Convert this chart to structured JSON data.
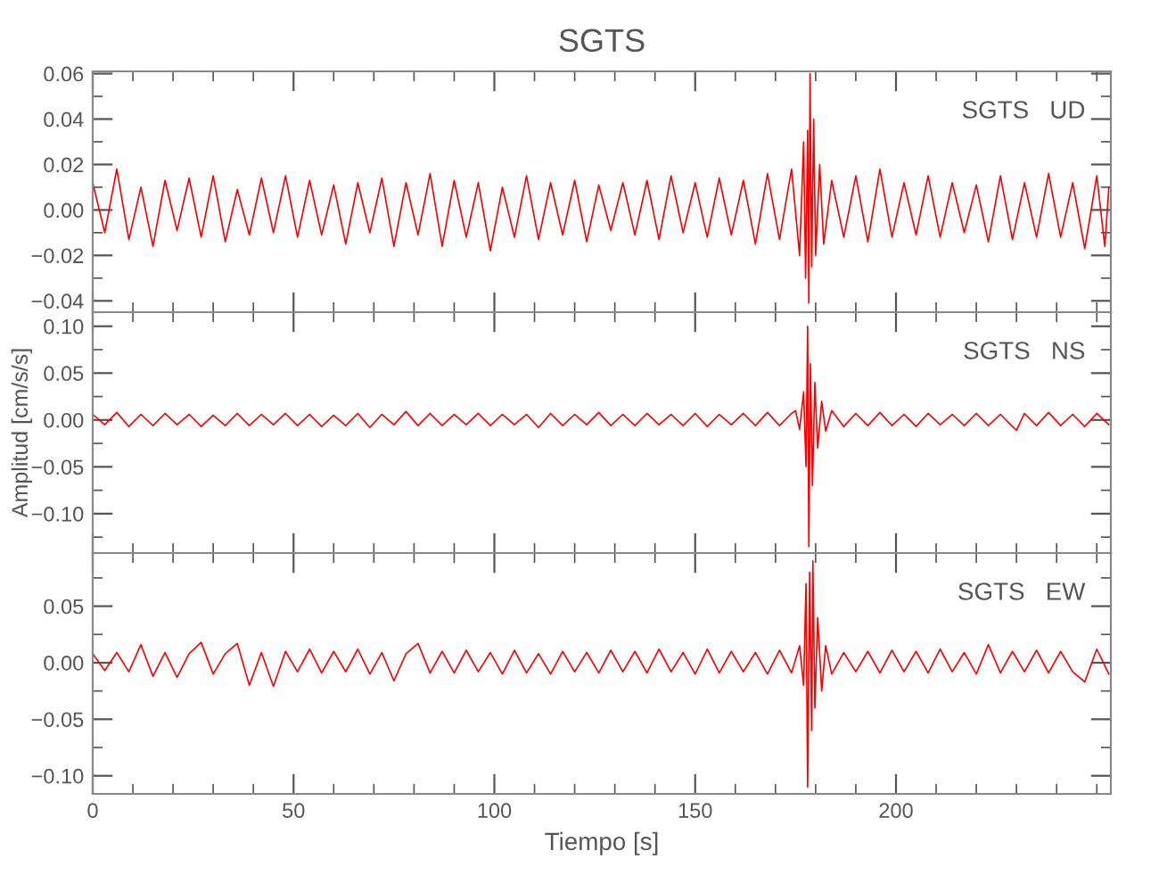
{
  "chart_data": [
    {
      "type": "line",
      "title": "SGTS",
      "annotations": [
        "SGTS   UD"
      ],
      "tick_labels": "y",
      "grid": false,
      "xlim": [
        0,
        253.5
      ],
      "xticks": [
        0,
        50,
        100,
        150,
        200
      ],
      "ylim": [
        -0.045,
        0.061
      ],
      "yticks": [
        {
          "value": -0.04,
          "label": "−0.04"
        },
        {
          "value": -0.02,
          "label": "−0.02"
        },
        {
          "value": 0,
          "label": "0.00"
        },
        {
          "value": 0.02,
          "label": "0.02"
        },
        {
          "value": 0.04,
          "label": "0.04"
        },
        {
          "value": 0.06,
          "label": "0.06"
        }
      ],
      "series": [
        {
          "color": "#ff0000",
          "x": [
            0,
            3,
            6,
            9,
            12,
            15,
            18,
            21,
            24,
            27,
            30,
            33,
            36,
            39,
            42,
            45,
            48,
            51,
            54,
            57,
            60,
            63,
            66,
            69,
            72,
            75,
            78,
            81,
            84,
            87,
            90,
            93,
            96,
            99,
            102,
            105,
            108,
            111,
            114,
            117,
            120,
            123,
            126,
            129,
            132,
            135,
            138,
            141,
            144,
            147,
            150,
            153,
            156,
            159,
            162,
            165,
            168,
            171,
            174,
            176,
            177,
            177.5,
            178,
            178.3,
            178.6,
            179,
            179.5,
            180,
            181,
            182,
            184,
            187,
            190,
            193,
            196,
            199,
            202,
            205,
            208,
            211,
            214,
            217,
            220,
            223,
            226,
            229,
            232,
            235,
            238,
            241,
            244,
            247,
            250,
            252,
            253
          ],
          "values": [
            0.012,
            -0.01,
            0.018,
            -0.013,
            0.01,
            -0.016,
            0.013,
            -0.009,
            0.014,
            -0.012,
            0.015,
            -0.014,
            0.009,
            -0.011,
            0.014,
            -0.01,
            0.015,
            -0.012,
            0.013,
            -0.011,
            0.011,
            -0.015,
            0.012,
            -0.01,
            0.014,
            -0.016,
            0.012,
            -0.011,
            0.016,
            -0.016,
            0.013,
            -0.012,
            0.012,
            -0.018,
            0.01,
            -0.012,
            0.015,
            -0.013,
            0.012,
            -0.011,
            0.013,
            -0.014,
            0.011,
            -0.009,
            0.012,
            -0.011,
            0.013,
            -0.013,
            0.015,
            -0.01,
            0.012,
            -0.012,
            0.014,
            -0.011,
            0.013,
            -0.015,
            0.016,
            -0.013,
            0.018,
            -0.02,
            0.03,
            -0.03,
            0.035,
            -0.041,
            0.06,
            -0.025,
            0.04,
            -0.02,
            0.02,
            -0.015,
            0.013,
            -0.012,
            0.015,
            -0.014,
            0.018,
            -0.012,
            0.012,
            -0.011,
            0.015,
            -0.012,
            0.012,
            -0.01,
            0.011,
            -0.014,
            0.015,
            -0.013,
            0.012,
            -0.012,
            0.016,
            -0.012,
            0.012,
            -0.017,
            0.015,
            -0.016,
            0.01
          ]
        }
      ]
    },
    {
      "type": "line",
      "annotations": [
        "SGTS   NS"
      ],
      "ylabel": "Amplitud [cm/s/s]",
      "tick_labels": "y",
      "grid": false,
      "xlim": [
        0,
        253.5
      ],
      "xticks": [
        0,
        50,
        100,
        150,
        200
      ],
      "ylim": [
        -0.142,
        0.115
      ],
      "yticks": [
        {
          "value": -0.1,
          "label": "−0.10"
        },
        {
          "value": -0.05,
          "label": "−0.05"
        },
        {
          "value": 0,
          "label": "0.00"
        },
        {
          "value": 0.05,
          "label": "0.05"
        },
        {
          "value": 0.1,
          "label": "0.10"
        }
      ],
      "series": [
        {
          "color": "#ff0000",
          "x": [
            0,
            3,
            6,
            9,
            12,
            15,
            18,
            21,
            24,
            27,
            30,
            33,
            36,
            39,
            42,
            45,
            48,
            51,
            54,
            57,
            60,
            63,
            66,
            69,
            72,
            75,
            78,
            81,
            84,
            87,
            90,
            93,
            96,
            99,
            102,
            105,
            108,
            111,
            114,
            117,
            120,
            123,
            126,
            129,
            132,
            135,
            138,
            141,
            144,
            147,
            150,
            153,
            156,
            159,
            162,
            165,
            168,
            171,
            174,
            175,
            176,
            177,
            177.6,
            178,
            178.3,
            178.7,
            179.2,
            179.8,
            180.5,
            181.5,
            182.5,
            184,
            187,
            190,
            193,
            196,
            199,
            202,
            205,
            208,
            211,
            214,
            217,
            220,
            223,
            226,
            229,
            230,
            232,
            235,
            238,
            241,
            244,
            247,
            250,
            253
          ],
          "values": [
            0.006,
            -0.005,
            0.008,
            -0.007,
            0.006,
            -0.006,
            0.007,
            -0.005,
            0.006,
            -0.007,
            0.005,
            -0.006,
            0.007,
            -0.006,
            0.006,
            -0.005,
            0.007,
            -0.006,
            0.006,
            -0.007,
            0.005,
            -0.006,
            0.007,
            -0.008,
            0.006,
            -0.005,
            0.009,
            -0.006,
            0.007,
            -0.006,
            0.006,
            -0.005,
            0.007,
            -0.006,
            0.006,
            -0.005,
            0.006,
            -0.008,
            0.007,
            -0.006,
            0.006,
            -0.005,
            0.008,
            -0.006,
            0.006,
            -0.006,
            0.007,
            -0.005,
            0.006,
            -0.006,
            0.007,
            -0.007,
            0.006,
            -0.005,
            0.007,
            -0.006,
            0.008,
            -0.006,
            0.007,
            0.01,
            -0.01,
            0.03,
            -0.05,
            0.1,
            -0.135,
            0.06,
            -0.07,
            0.04,
            -0.03,
            0.02,
            -0.012,
            0.01,
            -0.007,
            0.007,
            -0.006,
            0.008,
            -0.006,
            0.006,
            -0.007,
            0.007,
            -0.005,
            0.006,
            -0.006,
            0.007,
            -0.006,
            0.006,
            -0.007,
            -0.011,
            0.007,
            -0.006,
            0.008,
            -0.006,
            0.006,
            -0.007,
            0.007,
            -0.005
          ]
        }
      ]
    },
    {
      "type": "line",
      "annotations": [
        "SGTS   EW"
      ],
      "xlabel": "Tiempo [s]",
      "grid": false,
      "xlim": [
        0,
        253.5
      ],
      "xticks": [
        0,
        50,
        100,
        150,
        200
      ],
      "ylim": [
        -0.116,
        0.097
      ],
      "yticks": [
        {
          "value": -0.1,
          "label": "−0.10"
        },
        {
          "value": -0.05,
          "label": "−0.05"
        },
        {
          "value": 0,
          "label": "0.00"
        },
        {
          "value": 0.05,
          "label": "0.05"
        }
      ],
      "series": [
        {
          "color": "#ff0000",
          "x": [
            0,
            3,
            6,
            9,
            12,
            15,
            18,
            21,
            24,
            27,
            30,
            33,
            36,
            39,
            42,
            45,
            48,
            51,
            54,
            57,
            60,
            63,
            66,
            69,
            72,
            75,
            78,
            81,
            84,
            87,
            90,
            93,
            96,
            99,
            102,
            105,
            108,
            111,
            114,
            117,
            120,
            123,
            126,
            129,
            132,
            135,
            138,
            141,
            144,
            147,
            150,
            153,
            156,
            159,
            162,
            165,
            168,
            171,
            174,
            176,
            177,
            177.6,
            178,
            178.5,
            179,
            179.3,
            179.8,
            180.5,
            181.5,
            182.5,
            184,
            187,
            190,
            193,
            196,
            199,
            202,
            205,
            208,
            211,
            214,
            217,
            220,
            223,
            226,
            229,
            232,
            235,
            238,
            241,
            244,
            247,
            250,
            253
          ],
          "values": [
            0.008,
            -0.007,
            0.009,
            -0.008,
            0.016,
            -0.012,
            0.009,
            -0.013,
            0.008,
            0.018,
            -0.01,
            0.008,
            0.017,
            -0.02,
            0.009,
            -0.021,
            0.01,
            -0.008,
            0.012,
            -0.009,
            0.01,
            -0.008,
            0.012,
            -0.01,
            0.009,
            -0.016,
            0.008,
            0.017,
            -0.009,
            0.01,
            -0.009,
            0.011,
            -0.008,
            0.009,
            -0.01,
            0.011,
            -0.009,
            0.008,
            -0.01,
            0.01,
            -0.008,
            0.009,
            -0.009,
            0.011,
            -0.008,
            0.01,
            -0.009,
            0.012,
            -0.008,
            0.009,
            -0.01,
            0.012,
            -0.009,
            0.01,
            -0.008,
            0.009,
            -0.01,
            0.011,
            -0.009,
            0.015,
            -0.02,
            0.07,
            -0.11,
            0.08,
            -0.06,
            0.09,
            -0.04,
            0.04,
            -0.025,
            0.015,
            -0.01,
            0.009,
            -0.008,
            0.01,
            -0.009,
            0.011,
            -0.008,
            0.01,
            -0.009,
            0.012,
            -0.008,
            0.009,
            -0.01,
            0.016,
            -0.009,
            0.01,
            -0.008,
            0.011,
            -0.009,
            0.01,
            -0.008,
            -0.017,
            0.012,
            -0.01
          ]
        }
      ]
    }
  ]
}
